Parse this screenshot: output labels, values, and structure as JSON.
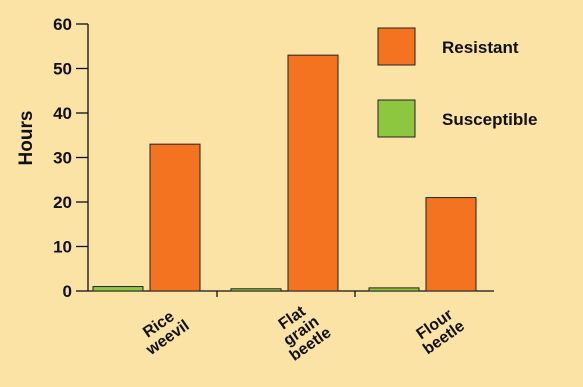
{
  "chart_data": {
    "type": "bar",
    "title": "",
    "xlabel": "",
    "ylabel": "Hours",
    "ylim": [
      0,
      60
    ],
    "yticks": [
      0,
      10,
      20,
      30,
      40,
      50,
      60
    ],
    "grid": false,
    "legend_position": "right",
    "categories": [
      {
        "lines": [
          "Rice",
          "weevil"
        ]
      },
      {
        "lines": [
          "Flat",
          "grain",
          "beetle"
        ]
      },
      {
        "lines": [
          "Flour",
          "beetle"
        ]
      }
    ],
    "series": [
      {
        "name": "Susceptible",
        "color": "#8dc63f",
        "values": [
          1,
          0.5,
          0.7
        ]
      },
      {
        "name": "Resistant",
        "color": "#f47320",
        "values": [
          33,
          53,
          21
        ]
      }
    ]
  }
}
